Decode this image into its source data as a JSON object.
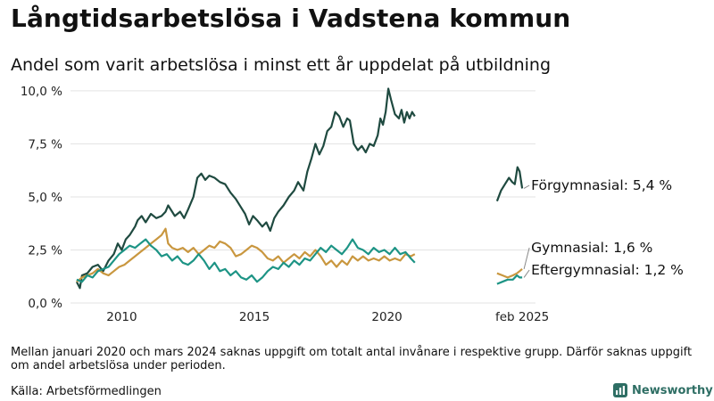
{
  "title": "Långtidsarbetslösa i Vadstena kommun",
  "subtitle": "Andel som varit arbetslösa i minst ett år uppdelat på utbildning",
  "note": "Mellan januari 2020 och mars 2024 saknas uppgift om totalt antal invånare i respektive grupp. Därför saknas uppgift om andel arbetslösa under perioden.",
  "source": "Källa: Arbetsförmedlingen",
  "brand": {
    "name": "Newsworthy",
    "icon": "newsworthy-logo-icon",
    "color": "#2e6e64"
  },
  "chart_data": {
    "type": "line",
    "title": "Långtidsarbetslösa i Vadstena kommun",
    "subtitle": "Andel som varit arbetslösa i minst ett år uppdelat på utbildning",
    "xlabel": "",
    "ylabel": "",
    "x_unit": "year",
    "xlim": [
      2008.0,
      2025.6
    ],
    "ylim": [
      0,
      10.5
    ],
    "y_ticks": [
      {
        "value": 0,
        "label": "0,0 %"
      },
      {
        "value": 2.5,
        "label": "2,5 %"
      },
      {
        "value": 5,
        "label": "5,0 %"
      },
      {
        "value": 7.5,
        "label": "7,5 %"
      },
      {
        "value": 10,
        "label": "10,0 %"
      }
    ],
    "x_ticks": [
      {
        "value": 2010,
        "label": "2010"
      },
      {
        "value": 2015,
        "label": "2015"
      },
      {
        "value": 2020,
        "label": "2020"
      },
      {
        "value": 2025.1,
        "label": "feb 2025"
      }
    ],
    "grid": {
      "horizontal": true,
      "vertical": false
    },
    "legend": "end-labels",
    "series": [
      {
        "name": "Förgymnasial",
        "end_label": "Förgymnasial: 5,4 %",
        "color": "#1f4a40",
        "segments": [
          [
            [
              2008.3,
              1.0
            ],
            [
              2008.42,
              0.7
            ],
            [
              2008.5,
              1.3
            ],
            [
              2008.7,
              1.4
            ],
            [
              2008.9,
              1.7
            ],
            [
              2009.1,
              1.8
            ],
            [
              2009.3,
              1.5
            ],
            [
              2009.5,
              2.0
            ],
            [
              2009.7,
              2.3
            ],
            [
              2009.85,
              2.8
            ],
            [
              2010.0,
              2.5
            ],
            [
              2010.15,
              3.0
            ],
            [
              2010.3,
              3.2
            ],
            [
              2010.5,
              3.6
            ],
            [
              2010.6,
              3.9
            ],
            [
              2010.75,
              4.1
            ],
            [
              2010.9,
              3.8
            ],
            [
              2011.1,
              4.2
            ],
            [
              2011.3,
              4.0
            ],
            [
              2011.5,
              4.1
            ],
            [
              2011.65,
              4.3
            ],
            [
              2011.75,
              4.6
            ],
            [
              2011.9,
              4.3
            ],
            [
              2012.0,
              4.1
            ],
            [
              2012.2,
              4.3
            ],
            [
              2012.35,
              4.0
            ],
            [
              2012.5,
              4.4
            ],
            [
              2012.7,
              5.0
            ],
            [
              2012.85,
              5.9
            ],
            [
              2013.0,
              6.1
            ],
            [
              2013.15,
              5.8
            ],
            [
              2013.3,
              6.0
            ],
            [
              2013.5,
              5.9
            ],
            [
              2013.7,
              5.7
            ],
            [
              2013.9,
              5.6
            ],
            [
              2014.1,
              5.2
            ],
            [
              2014.3,
              4.9
            ],
            [
              2014.5,
              4.5
            ],
            [
              2014.65,
              4.2
            ],
            [
              2014.8,
              3.7
            ],
            [
              2014.95,
              4.1
            ],
            [
              2015.1,
              3.9
            ],
            [
              2015.3,
              3.6
            ],
            [
              2015.45,
              3.8
            ],
            [
              2015.6,
              3.4
            ],
            [
              2015.75,
              4.0
            ],
            [
              2015.9,
              4.3
            ],
            [
              2016.1,
              4.6
            ],
            [
              2016.3,
              5.0
            ],
            [
              2016.5,
              5.3
            ],
            [
              2016.65,
              5.7
            ],
            [
              2016.85,
              5.3
            ],
            [
              2017.0,
              6.2
            ],
            [
              2017.15,
              6.8
            ],
            [
              2017.3,
              7.5
            ],
            [
              2017.45,
              7.0
            ],
            [
              2017.6,
              7.4
            ],
            [
              2017.75,
              8.1
            ],
            [
              2017.9,
              8.3
            ],
            [
              2018.05,
              9.0
            ],
            [
              2018.2,
              8.8
            ],
            [
              2018.35,
              8.3
            ],
            [
              2018.5,
              8.7
            ],
            [
              2018.6,
              8.6
            ],
            [
              2018.75,
              7.5
            ],
            [
              2018.9,
              7.2
            ],
            [
              2019.05,
              7.4
            ],
            [
              2019.2,
              7.1
            ],
            [
              2019.35,
              7.5
            ],
            [
              2019.5,
              7.4
            ],
            [
              2019.65,
              7.9
            ],
            [
              2019.75,
              8.7
            ],
            [
              2019.85,
              8.4
            ],
            [
              2019.95,
              9.0
            ],
            [
              2020.05,
              10.1
            ],
            [
              2020.15,
              9.6
            ],
            [
              2020.3,
              8.9
            ],
            [
              2020.45,
              8.7
            ],
            [
              2020.55,
              9.1
            ],
            [
              2020.65,
              8.5
            ],
            [
              2020.75,
              9.0
            ],
            [
              2020.85,
              8.7
            ],
            [
              2020.95,
              9.0
            ],
            [
              2021.05,
              8.8
            ]
          ],
          [
            [
              2024.15,
              4.8
            ],
            [
              2024.3,
              5.3
            ],
            [
              2024.45,
              5.6
            ],
            [
              2024.6,
              5.9
            ],
            [
              2024.72,
              5.7
            ],
            [
              2024.82,
              5.6
            ],
            [
              2024.92,
              6.4
            ],
            [
              2025.0,
              6.2
            ],
            [
              2025.1,
              5.4
            ]
          ]
        ]
      },
      {
        "name": "Gymnasial",
        "end_label": "Gymnasial: 1,6 %",
        "color": "#c9973f",
        "segments": [
          [
            [
              2008.3,
              1.0
            ],
            [
              2008.5,
              1.2
            ],
            [
              2008.7,
              1.3
            ],
            [
              2008.9,
              1.4
            ],
            [
              2009.1,
              1.6
            ],
            [
              2009.3,
              1.4
            ],
            [
              2009.5,
              1.3
            ],
            [
              2009.7,
              1.5
            ],
            [
              2009.9,
              1.7
            ],
            [
              2010.1,
              1.8
            ],
            [
              2010.3,
              2.0
            ],
            [
              2010.5,
              2.2
            ],
            [
              2010.7,
              2.4
            ],
            [
              2010.9,
              2.6
            ],
            [
              2011.1,
              2.8
            ],
            [
              2011.3,
              3.0
            ],
            [
              2011.5,
              3.2
            ],
            [
              2011.65,
              3.5
            ],
            [
              2011.75,
              2.8
            ],
            [
              2011.9,
              2.6
            ],
            [
              2012.1,
              2.5
            ],
            [
              2012.3,
              2.6
            ],
            [
              2012.5,
              2.4
            ],
            [
              2012.7,
              2.6
            ],
            [
              2012.9,
              2.3
            ],
            [
              2013.1,
              2.5
            ],
            [
              2013.3,
              2.7
            ],
            [
              2013.5,
              2.6
            ],
            [
              2013.7,
              2.9
            ],
            [
              2013.9,
              2.8
            ],
            [
              2014.1,
              2.6
            ],
            [
              2014.3,
              2.2
            ],
            [
              2014.5,
              2.3
            ],
            [
              2014.7,
              2.5
            ],
            [
              2014.9,
              2.7
            ],
            [
              2015.1,
              2.6
            ],
            [
              2015.3,
              2.4
            ],
            [
              2015.5,
              2.1
            ],
            [
              2015.7,
              2.0
            ],
            [
              2015.9,
              2.2
            ],
            [
              2016.1,
              1.9
            ],
            [
              2016.3,
              2.1
            ],
            [
              2016.5,
              2.3
            ],
            [
              2016.7,
              2.1
            ],
            [
              2016.9,
              2.4
            ],
            [
              2017.1,
              2.2
            ],
            [
              2017.3,
              2.5
            ],
            [
              2017.5,
              2.2
            ],
            [
              2017.7,
              1.8
            ],
            [
              2017.9,
              2.0
            ],
            [
              2018.1,
              1.7
            ],
            [
              2018.3,
              2.0
            ],
            [
              2018.5,
              1.8
            ],
            [
              2018.7,
              2.2
            ],
            [
              2018.9,
              2.0
            ],
            [
              2019.1,
              2.2
            ],
            [
              2019.3,
              2.0
            ],
            [
              2019.5,
              2.1
            ],
            [
              2019.7,
              2.0
            ],
            [
              2019.9,
              2.2
            ],
            [
              2020.1,
              2.0
            ],
            [
              2020.3,
              2.1
            ],
            [
              2020.5,
              2.0
            ],
            [
              2020.7,
              2.3
            ],
            [
              2020.9,
              2.2
            ],
            [
              2021.05,
              2.3
            ]
          ],
          [
            [
              2024.15,
              1.4
            ],
            [
              2024.35,
              1.3
            ],
            [
              2024.55,
              1.2
            ],
            [
              2024.75,
              1.3
            ],
            [
              2024.9,
              1.4
            ],
            [
              2025.0,
              1.5
            ],
            [
              2025.1,
              1.6
            ]
          ]
        ]
      },
      {
        "name": "Eftergymnasial",
        "end_label": "Eftergymnasial: 1,2 %",
        "color": "#1d9485",
        "segments": [
          [
            [
              2008.3,
              1.1
            ],
            [
              2008.5,
              1.0
            ],
            [
              2008.7,
              1.3
            ],
            [
              2008.9,
              1.2
            ],
            [
              2009.1,
              1.5
            ],
            [
              2009.3,
              1.6
            ],
            [
              2009.5,
              1.7
            ],
            [
              2009.7,
              2.0
            ],
            [
              2009.9,
              2.3
            ],
            [
              2010.1,
              2.5
            ],
            [
              2010.3,
              2.7
            ],
            [
              2010.5,
              2.6
            ],
            [
              2010.7,
              2.8
            ],
            [
              2010.9,
              3.0
            ],
            [
              2011.1,
              2.7
            ],
            [
              2011.3,
              2.5
            ],
            [
              2011.5,
              2.2
            ],
            [
              2011.7,
              2.3
            ],
            [
              2011.9,
              2.0
            ],
            [
              2012.1,
              2.2
            ],
            [
              2012.3,
              1.9
            ],
            [
              2012.5,
              1.8
            ],
            [
              2012.7,
              2.0
            ],
            [
              2012.9,
              2.3
            ],
            [
              2013.1,
              2.0
            ],
            [
              2013.3,
              1.6
            ],
            [
              2013.5,
              1.9
            ],
            [
              2013.7,
              1.5
            ],
            [
              2013.9,
              1.6
            ],
            [
              2014.1,
              1.3
            ],
            [
              2014.3,
              1.5
            ],
            [
              2014.5,
              1.2
            ],
            [
              2014.7,
              1.1
            ],
            [
              2014.9,
              1.3
            ],
            [
              2015.1,
              1.0
            ],
            [
              2015.3,
              1.2
            ],
            [
              2015.5,
              1.5
            ],
            [
              2015.7,
              1.7
            ],
            [
              2015.9,
              1.6
            ],
            [
              2016.1,
              1.9
            ],
            [
              2016.3,
              1.7
            ],
            [
              2016.5,
              2.0
            ],
            [
              2016.7,
              1.8
            ],
            [
              2016.9,
              2.1
            ],
            [
              2017.1,
              2.0
            ],
            [
              2017.3,
              2.3
            ],
            [
              2017.5,
              2.6
            ],
            [
              2017.7,
              2.4
            ],
            [
              2017.9,
              2.7
            ],
            [
              2018.1,
              2.5
            ],
            [
              2018.3,
              2.3
            ],
            [
              2018.5,
              2.6
            ],
            [
              2018.7,
              3.0
            ],
            [
              2018.9,
              2.6
            ],
            [
              2019.1,
              2.5
            ],
            [
              2019.3,
              2.3
            ],
            [
              2019.5,
              2.6
            ],
            [
              2019.7,
              2.4
            ],
            [
              2019.9,
              2.5
            ],
            [
              2020.1,
              2.3
            ],
            [
              2020.3,
              2.6
            ],
            [
              2020.5,
              2.3
            ],
            [
              2020.7,
              2.4
            ],
            [
              2020.9,
              2.1
            ],
            [
              2021.05,
              1.9
            ]
          ],
          [
            [
              2024.15,
              0.9
            ],
            [
              2024.35,
              1.0
            ],
            [
              2024.55,
              1.1
            ],
            [
              2024.75,
              1.1
            ],
            [
              2024.9,
              1.3
            ],
            [
              2025.0,
              1.2
            ],
            [
              2025.1,
              1.2
            ]
          ]
        ]
      }
    ]
  }
}
